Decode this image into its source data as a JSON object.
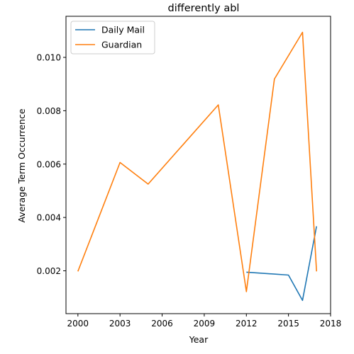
{
  "chart_data": {
    "type": "line",
    "title": "differently abl",
    "xlabel": "Year",
    "ylabel": "Average Term Occurrence",
    "xlim": [
      1999.15,
      2018.0
    ],
    "ylim": [
      0.000395,
      0.01154
    ],
    "xticks": [
      2000,
      2003,
      2006,
      2009,
      2012,
      2015,
      2018
    ],
    "xtick_labels": [
      "2000",
      "2003",
      "2006",
      "2009",
      "2012",
      "2015",
      "2018"
    ],
    "yticks": [
      0.002,
      0.004,
      0.006,
      0.008,
      0.01
    ],
    "ytick_labels": [
      "0.002",
      "0.004",
      "0.006",
      "0.008",
      "0.010"
    ],
    "grid": false,
    "legend_position": "top-left",
    "series": [
      {
        "name": "Daily Mail",
        "color": "#1f77b4",
        "x": [
          2012,
          2015,
          2016,
          2017
        ],
        "y": [
          0.00195,
          0.00184,
          0.00089,
          0.00367
        ]
      },
      {
        "name": "Guardian",
        "color": "#ff7f0e",
        "x": [
          2000,
          2003,
          2005,
          2010,
          2012,
          2014,
          2016,
          2017
        ],
        "y": [
          0.00198,
          0.00606,
          0.00525,
          0.00822,
          0.00122,
          0.00919,
          0.01094,
          0.00198
        ]
      }
    ]
  }
}
